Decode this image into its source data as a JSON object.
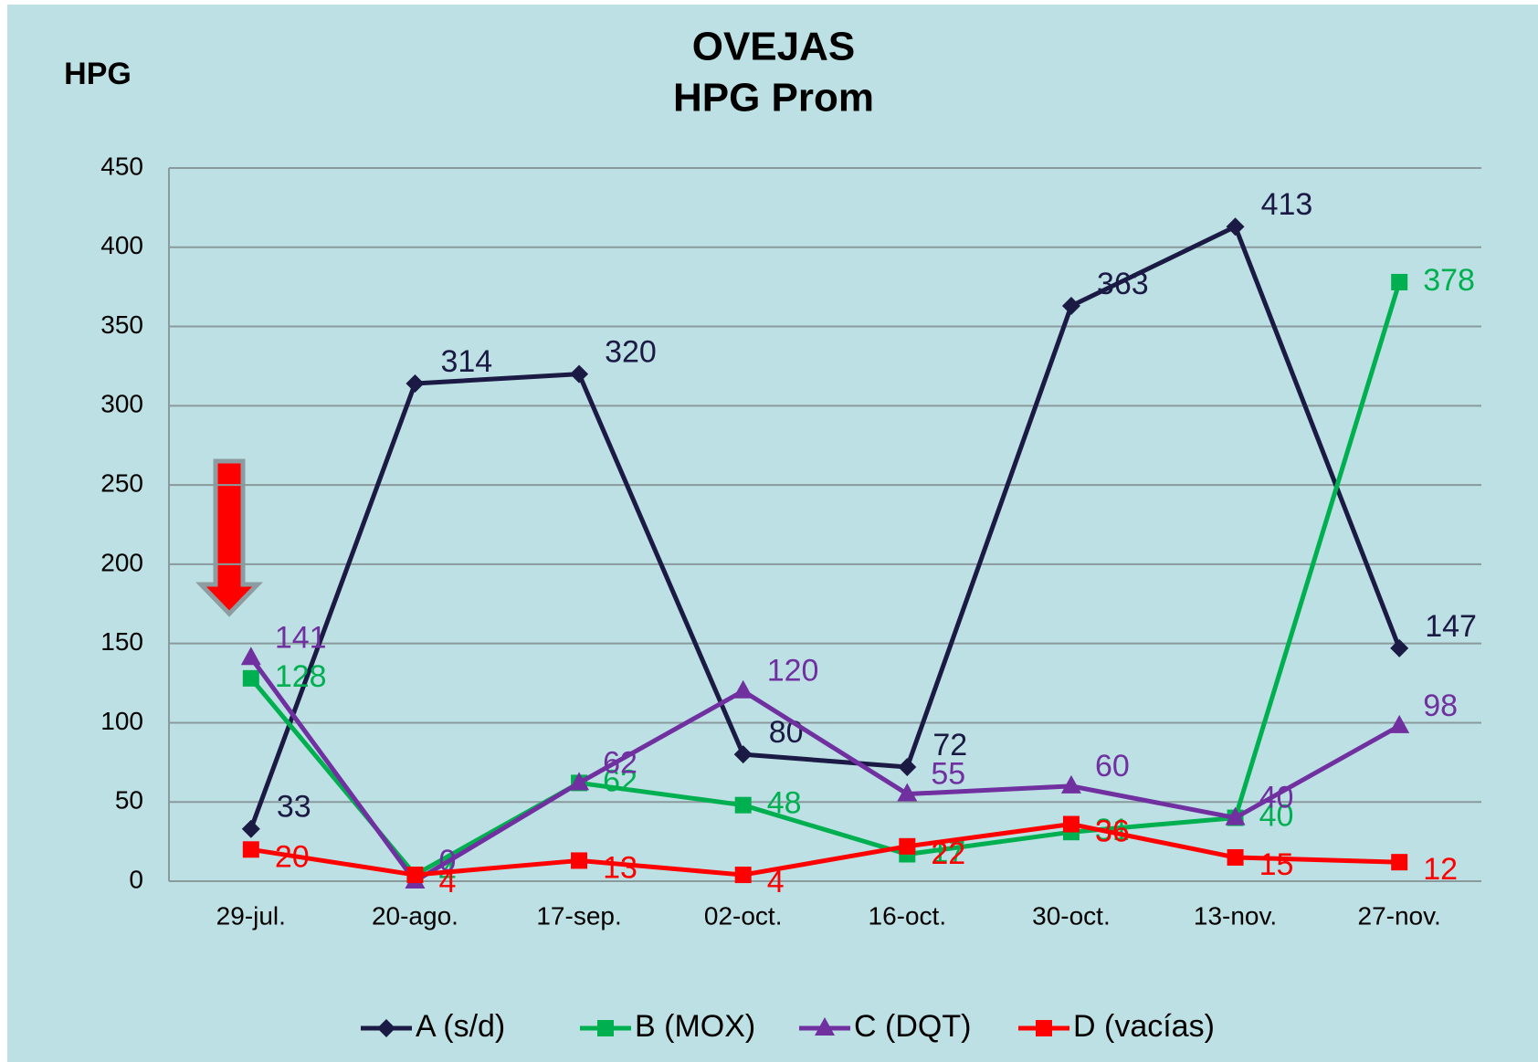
{
  "chart_data": {
    "type": "line",
    "title": "OVEJAS",
    "subtitle": "HPG Prom",
    "y_label": "HPG",
    "categories": [
      "29-jul.",
      "20-ago.",
      "17-sep.",
      "02-oct.",
      "16-oct.",
      "30-oct.",
      "13-nov.",
      "27-nov."
    ],
    "series": [
      {
        "name": "A (s/d)",
        "color": "#1b1a44",
        "marker": "diamond",
        "values": [
          33,
          314,
          320,
          80,
          72,
          363,
          413,
          147
        ]
      },
      {
        "name": "B (MOX)",
        "color": "#00b050",
        "marker": "square",
        "values": [
          128,
          4,
          62,
          48,
          17,
          31,
          40,
          378
        ]
      },
      {
        "name": "C (DQT)",
        "color": "#7030a0",
        "marker": "triangle",
        "values": [
          141,
          0,
          62,
          120,
          55,
          60,
          40,
          98
        ]
      },
      {
        "name": "D (vacías)",
        "color": "#ff0000",
        "marker": "square",
        "values": [
          20,
          4,
          13,
          4,
          22,
          36,
          15,
          12
        ]
      }
    ],
    "ylim": [
      0,
      450
    ],
    "yticks": [
      0,
      50,
      100,
      150,
      200,
      250,
      300,
      350,
      400,
      450
    ],
    "grid": true,
    "legend": "bottom"
  }
}
